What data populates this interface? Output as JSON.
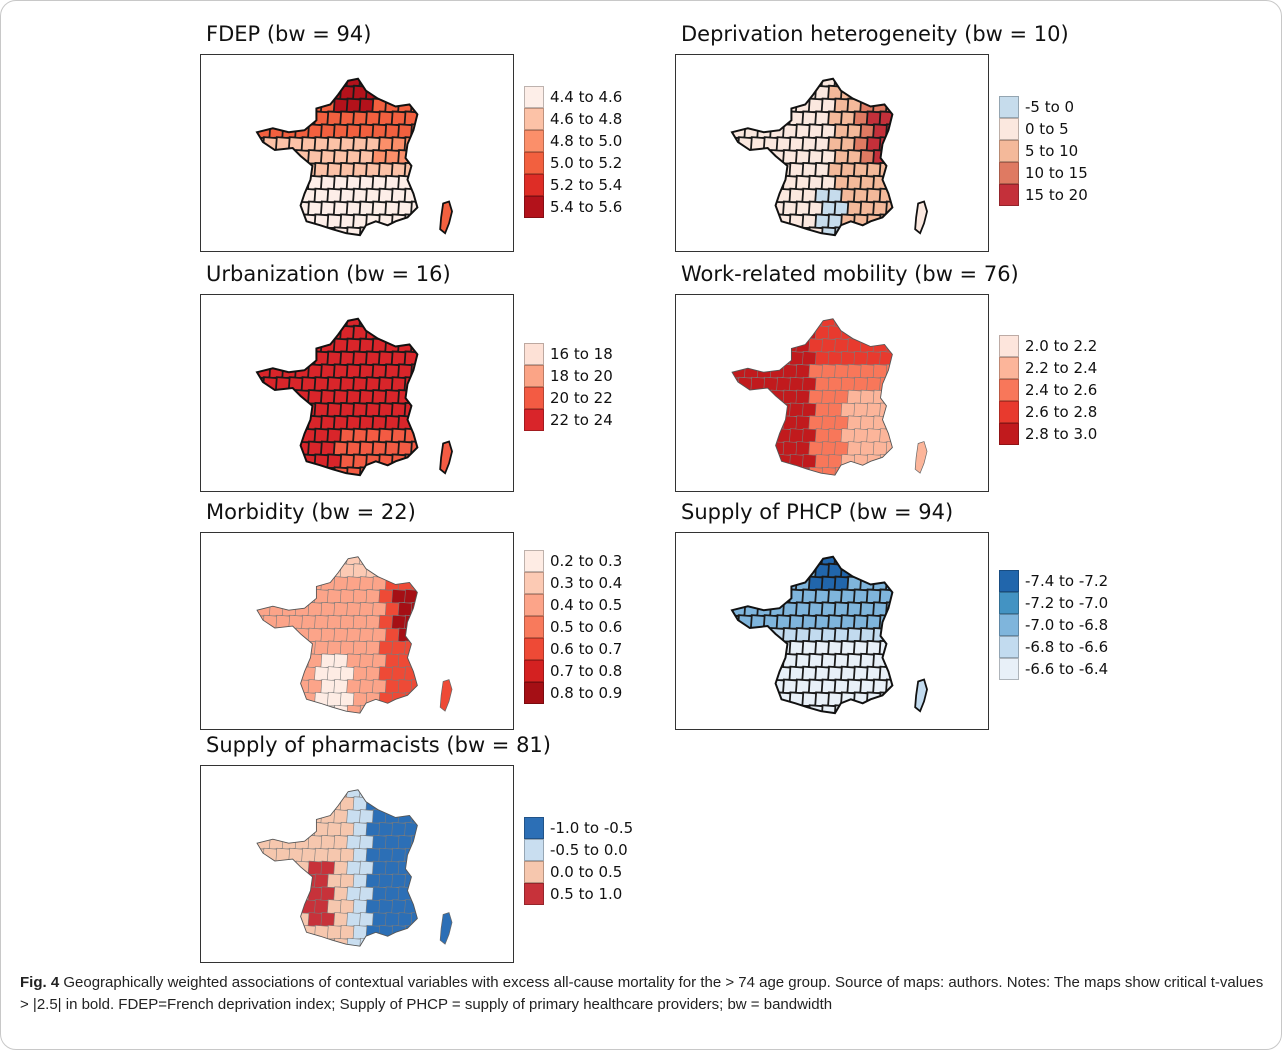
{
  "panels": [
    {
      "id": "fdep",
      "title": "FDEP (bw = 94)",
      "legend": [
        {
          "label": "4.4 to 4.6",
          "color": "#fdeee8"
        },
        {
          "label": "4.6 to 4.8",
          "color": "#fcc2a7"
        },
        {
          "label": "4.8 to 5.0",
          "color": "#fb8f6a"
        },
        {
          "label": "5.0 to 5.2",
          "color": "#f2603f"
        },
        {
          "label": "5.2 to 5.4",
          "color": "#de2d26"
        },
        {
          "label": "5.4 to 5.6",
          "color": "#b3121b"
        }
      ]
    },
    {
      "id": "deprivation-heterogeneity",
      "title": "Deprivation heterogeneity (bw = 10)",
      "legend": [
        {
          "label": "-5 to 0",
          "color": "#c6dcec"
        },
        {
          "label": "0 to 5",
          "color": "#fbe8df"
        },
        {
          "label": "5 to 10",
          "color": "#f4b99a"
        },
        {
          "label": "10 to 15",
          "color": "#df7a62"
        },
        {
          "label": "15 to 20",
          "color": "#c4303a"
        }
      ]
    },
    {
      "id": "urbanization",
      "title": "Urbanization (bw = 16)",
      "legend": [
        {
          "label": "16 to 18",
          "color": "#fde1d6"
        },
        {
          "label": "18 to 20",
          "color": "#fba486"
        },
        {
          "label": "20 to 22",
          "color": "#f35b43"
        },
        {
          "label": "22 to 24",
          "color": "#d9252a"
        }
      ]
    },
    {
      "id": "work-related-mobility",
      "title": "Work-related mobility (bw = 76)",
      "legend": [
        {
          "label": "2.0 to 2.2",
          "color": "#fde5dc"
        },
        {
          "label": "2.2 to 2.4",
          "color": "#fcb59a"
        },
        {
          "label": "2.4 to 2.6",
          "color": "#f8775a"
        },
        {
          "label": "2.6 to 2.8",
          "color": "#e83a2e"
        },
        {
          "label": "2.8 to 3.0",
          "color": "#c11a1d"
        }
      ]
    },
    {
      "id": "morbidity",
      "title": "Morbidity (bw = 22)",
      "legend": [
        {
          "label": "0.2 to 0.3",
          "color": "#feece4"
        },
        {
          "label": "0.3 to 0.4",
          "color": "#fccab4"
        },
        {
          "label": "0.4 to 0.5",
          "color": "#fca489"
        },
        {
          "label": "0.5 to 0.6",
          "color": "#f87a5c"
        },
        {
          "label": "0.6 to 0.7",
          "color": "#ee4a36"
        },
        {
          "label": "0.7 to 0.8",
          "color": "#d42121"
        },
        {
          "label": "0.8 to 0.9",
          "color": "#a50f15"
        }
      ]
    },
    {
      "id": "supply-of-phcp",
      "title": "Supply of PHCP (bw = 94)",
      "legend": [
        {
          "label": "-7.4 to -7.2",
          "color": "#2166ac"
        },
        {
          "label": "-7.2 to -7.0",
          "color": "#4393c3"
        },
        {
          "label": "-7.0 to -6.8",
          "color": "#7fb5dc"
        },
        {
          "label": "-6.8 to -6.6",
          "color": "#c2dbef"
        },
        {
          "label": "-6.6 to -6.4",
          "color": "#e8f0f8"
        }
      ]
    },
    {
      "id": "supply-of-pharmacists",
      "title": "Supply of pharmacists (bw = 81)",
      "legend": [
        {
          "label": "-1.0 to -0.5",
          "color": "#2c6fb6"
        },
        {
          "label": "-0.5 to 0.0",
          "color": "#c9def0"
        },
        {
          "label": "0.0 to 0.5",
          "color": "#f6c7ae"
        },
        {
          "label": "0.5 to 1.0",
          "color": "#c7323a"
        }
      ]
    }
  ],
  "caption": {
    "figure_label": "Fig. 4",
    "text": "Geographically weighted associations of contextual variables with excess all-cause mortality for the > 74 age group. Source of maps: authors. Notes: The maps show critical t-values > |2.5| in bold. FDEP=French deprivation index; Supply of PHCP = supply of primary healthcare providers; bw = bandwidth"
  }
}
